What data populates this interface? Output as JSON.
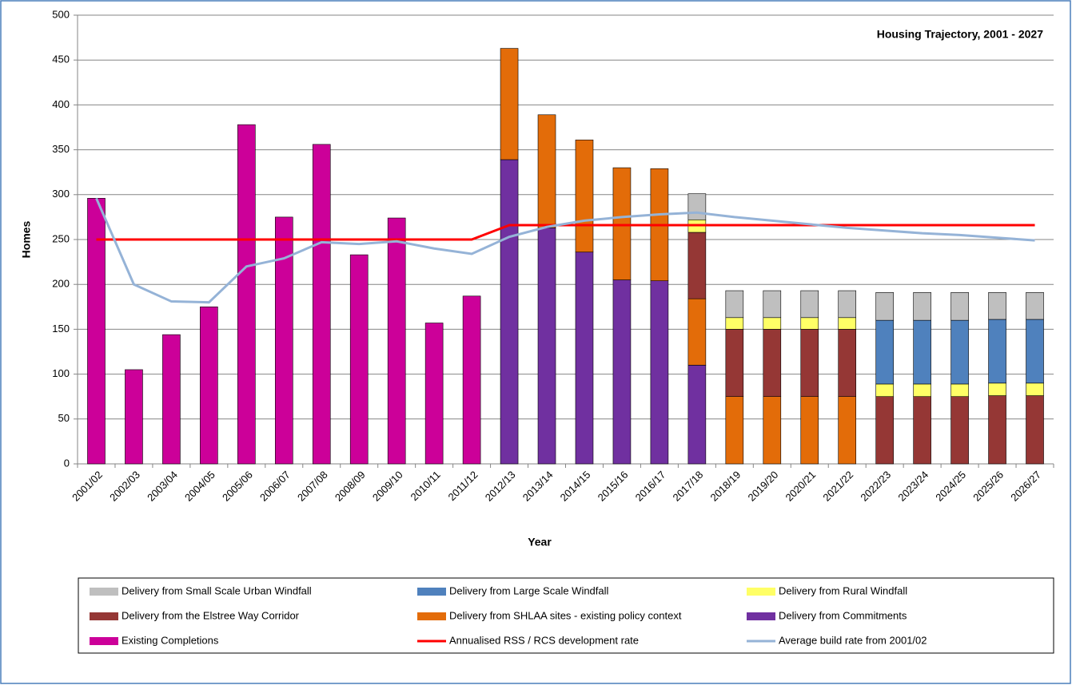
{
  "chart_data": {
    "type": "bar",
    "stacked": true,
    "title": "Housing Trajectory, 2001 - 2027",
    "x_label": "Year",
    "y_label": "Homes",
    "categories": [
      "2001/02",
      "2002/03",
      "2003/04",
      "2004/05",
      "2005/06",
      "2006/07",
      "2007/08",
      "2008/09",
      "2009/10",
      "2010/11",
      "2011/12",
      "2012/13",
      "2013/14",
      "2014/15",
      "2015/16",
      "2016/17",
      "2017/18",
      "2018/19",
      "2019/20",
      "2020/21",
      "2021/22",
      "2022/23",
      "2023/24",
      "2024/25",
      "2025/26",
      "2026/27"
    ],
    "ylim": [
      0,
      500
    ],
    "yticks": [
      0,
      50,
      100,
      150,
      200,
      250,
      300,
      350,
      400,
      450,
      500
    ],
    "grid": true,
    "series": [
      {
        "name": "Delivery from Small Scale Urban Windfall",
        "color": "#bfbfbf",
        "values": [
          null,
          null,
          null,
          null,
          null,
          null,
          null,
          null,
          null,
          null,
          null,
          null,
          null,
          null,
          null,
          null,
          29,
          30,
          30,
          30,
          30,
          31,
          31,
          31,
          30,
          30
        ]
      },
      {
        "name": "Delivery from Large Scale Windfall",
        "color": "#4f81bd",
        "values": [
          null,
          null,
          null,
          null,
          null,
          null,
          null,
          null,
          null,
          null,
          null,
          null,
          null,
          null,
          null,
          null,
          null,
          null,
          null,
          null,
          null,
          71,
          71,
          71,
          71,
          71
        ]
      },
      {
        "name": "Delivery from Rural Windfall",
        "color": "#ffff66",
        "values": [
          null,
          null,
          null,
          null,
          null,
          null,
          null,
          null,
          null,
          null,
          null,
          null,
          null,
          null,
          null,
          null,
          14,
          13,
          13,
          13,
          13,
          14,
          14,
          14,
          14,
          14
        ]
      },
      {
        "name": "Delivery from the Elstree Way Corridor",
        "color": "#953735",
        "values": [
          null,
          null,
          null,
          null,
          null,
          null,
          null,
          null,
          null,
          null,
          null,
          null,
          null,
          null,
          null,
          null,
          74,
          75,
          75,
          75,
          75,
          75,
          75,
          75,
          76,
          76
        ]
      },
      {
        "name": "Delivery from SHLAA sites - existing policy context",
        "color": "#e36c09",
        "values": [
          null,
          null,
          null,
          null,
          null,
          null,
          null,
          null,
          null,
          null,
          null,
          124,
          126,
          125,
          125,
          125,
          74,
          75,
          75,
          75,
          75,
          null,
          null,
          null,
          null,
          null
        ]
      },
      {
        "name": "Delivery from Commitments",
        "color": "#7030a0",
        "values": [
          null,
          null,
          null,
          null,
          null,
          null,
          null,
          null,
          null,
          null,
          null,
          339,
          263,
          236,
          205,
          204,
          110,
          null,
          null,
          null,
          null,
          null,
          null,
          null,
          null,
          null
        ]
      },
      {
        "name": "Existing Completions",
        "color": "#cc0099",
        "values": [
          296,
          105,
          144,
          175,
          378,
          275,
          356,
          233,
          274,
          157,
          187,
          null,
          null,
          null,
          null,
          null,
          null,
          null,
          null,
          null,
          null,
          null,
          null,
          null,
          null,
          null
        ]
      },
      {
        "name": "Annualised RSS / RCS development rate",
        "type": "line",
        "color": "#ff0000",
        "values": [
          250,
          250,
          250,
          250,
          250,
          250,
          250,
          250,
          250,
          250,
          250,
          266,
          266,
          266,
          266,
          266,
          266,
          266,
          266,
          266,
          266,
          266,
          266,
          266,
          266,
          266
        ]
      },
      {
        "name": "Average build rate from 2001/02",
        "type": "line",
        "color": "#95b3d7",
        "values": [
          296,
          200,
          181,
          180,
          220,
          229,
          247,
          245,
          248,
          240,
          234,
          253,
          264,
          271,
          275,
          278,
          280,
          275,
          271,
          267,
          263,
          260,
          257,
          255,
          252,
          249
        ]
      }
    ]
  }
}
